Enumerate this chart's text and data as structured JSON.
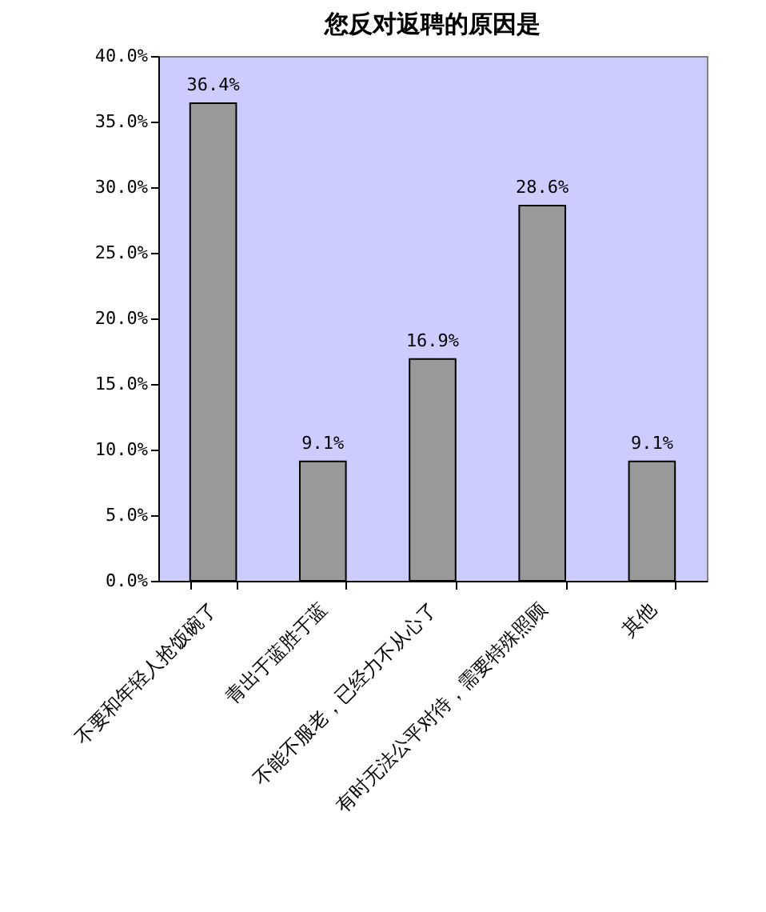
{
  "chart_data": {
    "type": "bar",
    "title": "您反对返聘的原因是",
    "categories": [
      "不要和年轻人抢饭碗了",
      "青出于蓝胜于蓝",
      "不能不服老，已经力不从心了",
      "有时无法公平对待，需要特殊照顾",
      "其他"
    ],
    "values": [
      36.4,
      9.1,
      16.9,
      28.6,
      9.1
    ],
    "value_labels": [
      "36.4%",
      "9.1%",
      "16.9%",
      "28.6%",
      "9.1%"
    ],
    "color": "#999999",
    "ylim": [
      0,
      40
    ],
    "yticks": [
      {
        "value": 0,
        "label": "0.0%"
      },
      {
        "value": 5,
        "label": "5.0%"
      },
      {
        "value": 10,
        "label": "10.0%"
      },
      {
        "value": 15,
        "label": "15.0%"
      },
      {
        "value": 20,
        "label": "20.0%"
      },
      {
        "value": 25,
        "label": "25.0%"
      },
      {
        "value": 30,
        "label": "30.0%"
      },
      {
        "value": 35,
        "label": "35.0%"
      },
      {
        "value": 40,
        "label": "40.0%"
      }
    ]
  }
}
